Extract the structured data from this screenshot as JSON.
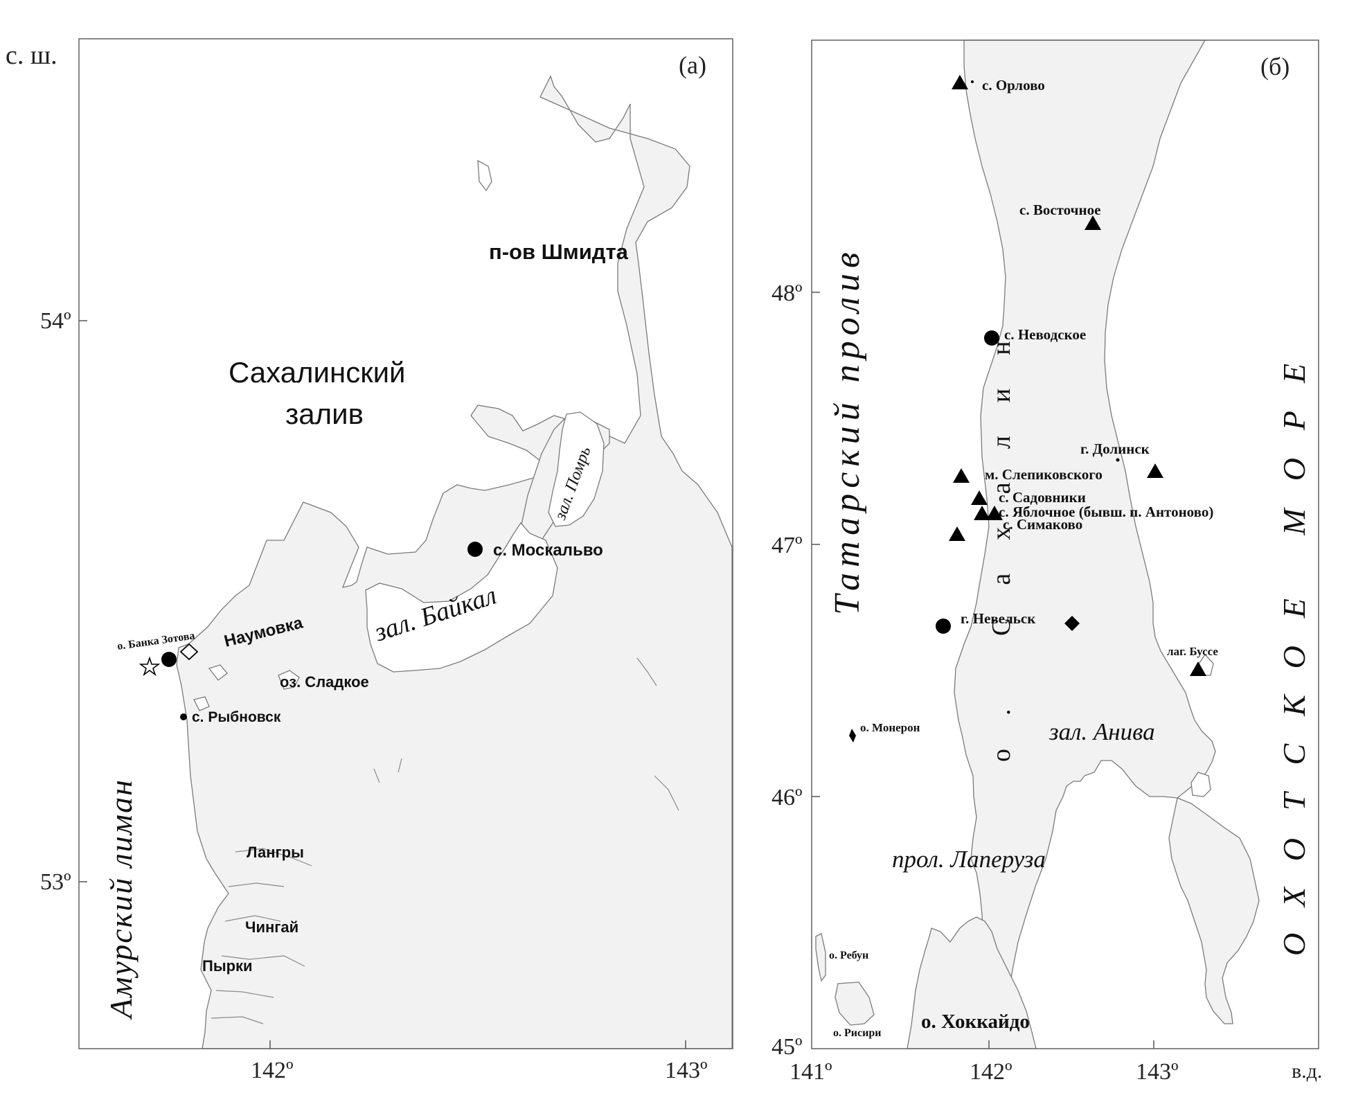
{
  "panel_a": {
    "tag": "(а)",
    "lat_axis_title": "с. ш.",
    "lat_ticks": [
      "54º",
      "53º"
    ],
    "lon_ticks": [
      "142º",
      "143º"
    ],
    "labels": {
      "shmidt": "п-ов Шмидта",
      "gulf_line1": "Сахалинский",
      "gulf_line2": "залив",
      "pomr": "зал. Помрь",
      "moskalvo": "с. Москальво",
      "baikal": "зал. Байкал",
      "bank_zotova": "о. Банка Зотова",
      "naumovka": "Наумовка",
      "sladkoe": "оз. Сладкое",
      "rybnovsk": "с. Рыбновск",
      "amur_liman": "Амурский лиман",
      "langry": "Лангры",
      "chingai": "Чингай",
      "pyrki": "Пырки"
    }
  },
  "panel_b": {
    "tag": "(б)",
    "lat_ticks": [
      "48º",
      "47º",
      "46º",
      "45º"
    ],
    "lon_ticks": [
      "141º",
      "142º",
      "143º"
    ],
    "lon_axis_title": "в.д.",
    "labels": {
      "orlovo": "с. Орлово",
      "vostochnoe": "с. Восточное",
      "nevodskoe": "с. Неводское",
      "dolinsk": "г. Долинск",
      "slepikovskogo": "м. Слепиковского",
      "sadovniki": "с. Садовники",
      "yablochnoe": "с. Яблочное (бывш. п. Антоново)",
      "simakovo": "с. Симаково",
      "nevelsk": "г. Невельск",
      "busse": "лаг. Буссе",
      "moneron": "о. Монерон",
      "aniva": "зал. Анива",
      "laperuza": "прол. Лаперуза",
      "rebun": "о. Ребун",
      "rishiri": "о. Рисири",
      "hokkaido": "о. Хоккайдо",
      "tatar_strait": "Татарский пролив",
      "okhotsk_sea": "ОХОТСКОЕ МОРЕ",
      "sakhalin_island": "о. Сахалин"
    }
  },
  "colors": {
    "land": "#f2f2f2",
    "coast": "#7a7a7a",
    "water": "#ffffff",
    "marker": "#000000"
  },
  "marker_types": [
    "filled-circle",
    "filled-triangle",
    "filled-diamond",
    "open-diamond",
    "open-star",
    "small-dot"
  ]
}
